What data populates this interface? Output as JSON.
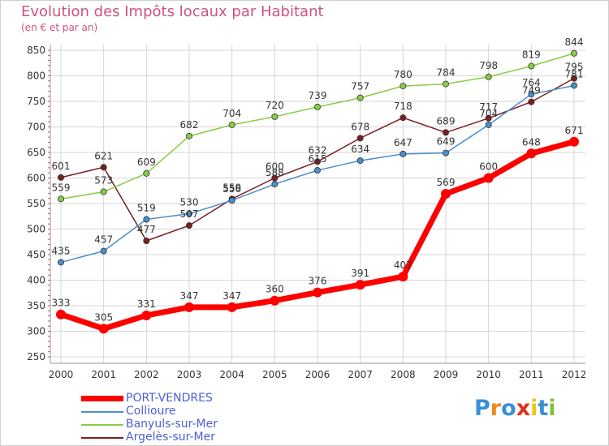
{
  "title": "Evolution des Impôts locaux par Habitant",
  "subtitle": "(en € et par an)",
  "logo": {
    "text": "Proxiti",
    "letters": [
      "P",
      "r",
      "o",
      "x",
      "i",
      "t",
      "i"
    ],
    "colors": [
      "#3a8fd8",
      "#f08a1c",
      "#3a8fd8",
      "#e0301e",
      "#f0c419",
      "#3a8fd8",
      "#7fc241"
    ]
  },
  "chart_data": {
    "type": "line",
    "x": [
      "2000",
      "2001",
      "2002",
      "2003",
      "2004",
      "2005",
      "2006",
      "2007",
      "2008",
      "2009",
      "2010",
      "2011",
      "2012"
    ],
    "ylim": [
      250,
      850
    ],
    "yticks": [
      250,
      300,
      350,
      400,
      450,
      500,
      550,
      600,
      650,
      700,
      750,
      800,
      850
    ],
    "grid": true,
    "legend": "bottom-left",
    "series": [
      {
        "name": "PORT-VENDRES",
        "color": "#ff0000",
        "values": [
          333,
          305,
          331,
          347,
          347,
          360,
          376,
          391,
          407,
          569,
          600,
          648,
          671
        ],
        "labels": [
          "333",
          "305",
          "331",
          "347",
          "347",
          "360",
          "376",
          "391",
          "407",
          "569",
          "600",
          "648",
          "671"
        ]
      },
      {
        "name": "Collioure",
        "color": "#4a8fc8",
        "values": [
          435,
          457,
          519,
          530,
          556,
          588,
          615,
          634,
          647,
          649,
          704,
          764,
          781
        ],
        "labels": [
          "435",
          "457",
          "519",
          "530",
          "556",
          "588",
          "615",
          "634",
          "647",
          "649",
          "704",
          "764",
          "781"
        ]
      },
      {
        "name": "Banyuls-sur-Mer",
        "color": "#88cc44",
        "values": [
          559,
          573,
          609,
          682,
          704,
          720,
          739,
          757,
          780,
          784,
          798,
          819,
          844
        ],
        "labels": [
          "559",
          "573",
          "609",
          "682",
          "704",
          "720",
          "739",
          "757",
          "780",
          "784",
          "798",
          "819",
          "844"
        ]
      },
      {
        "name": "Argelès-sur-Mer",
        "color": "#7a1f24",
        "values": [
          601,
          621,
          477,
          507,
          559,
          600,
          632,
          678,
          718,
          689,
          717,
          749,
          795
        ],
        "labels": [
          "601",
          "621",
          "477",
          "507",
          "559",
          "600",
          "632",
          "678",
          "718",
          "689",
          "717",
          "749",
          "795"
        ]
      }
    ]
  }
}
